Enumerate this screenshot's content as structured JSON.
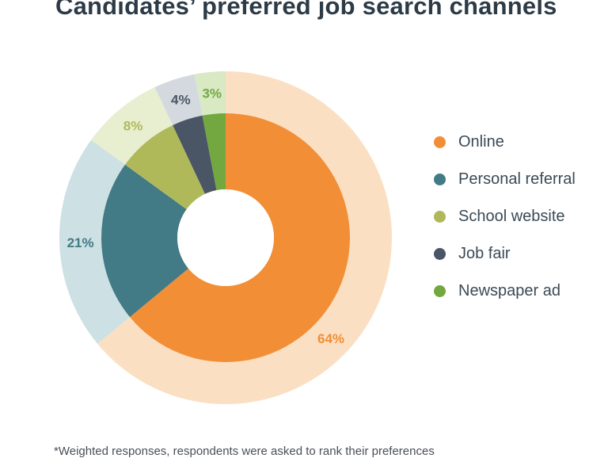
{
  "title": "Candidates’ preferred job search channels",
  "footnote": "*Weighted responses, respondents were asked to rank their preferences",
  "chart_data": {
    "type": "pie",
    "title": "Candidates’ preferred job search channels",
    "variant": "donut",
    "legend_position": "right",
    "categories": [
      "Online",
      "Personal referral",
      "School website",
      "Job fair",
      "Newspaper ad"
    ],
    "values": [
      64,
      21,
      8,
      4,
      3
    ],
    "labels": [
      "64%",
      "21%",
      "8%",
      "4%",
      "3%"
    ],
    "colors": [
      "#f28e35",
      "#427a86",
      "#afb95a",
      "#4a5665",
      "#72a83f"
    ],
    "outer_ring_colors": [
      "#fbdfc2",
      "#cde0e4",
      "#e8eed0",
      "#d3d9de",
      "#d8e9c4"
    ]
  }
}
